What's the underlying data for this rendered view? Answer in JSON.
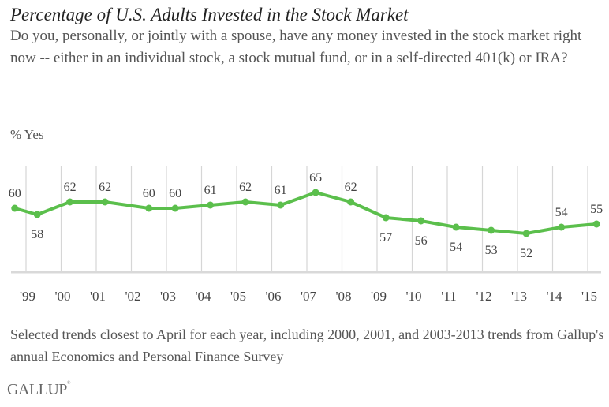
{
  "title": "Percentage of U.S. Adults Invested in the Stock Market",
  "question": "Do you, personally, or jointly with a spouse, have any money invested in the stock market right now -- either in an individual stock, a stock mutual fund, or in a self-directed 401(k) or IRA?",
  "footnote": "Selected trends closest to April for each year, including 2000, 2001, and 2003-2013 trends from Gallup's annual Economics and Personal Finance Survey",
  "logo": "GALLUP",
  "colors": {
    "series": "#5bbf4c",
    "grid": "#d6d6d6",
    "text": "#444444"
  },
  "chart_data": {
    "type": "line",
    "title": "Percentage of U.S. Adults Invested in the Stock Market",
    "ylabel": "% Yes",
    "xlabel": "",
    "grid": "vertical",
    "legend": "none",
    "x_tick_labels": [
      "'99",
      "'00",
      "'01",
      "'02",
      "'03",
      "'04",
      "'05",
      "'06",
      "'07",
      "'08",
      "'09",
      "'10",
      "'11",
      "'12",
      "'13",
      "'14",
      "'15"
    ],
    "x_range": [
      1998.6,
      2015.6
    ],
    "ylim": [
      44,
      70
    ],
    "series": [
      {
        "name": "% Yes",
        "points": [
          {
            "x": 1998.68,
            "y": 60,
            "label": "60",
            "label_pos": "above"
          },
          {
            "x": 1999.32,
            "y": 58,
            "label": "58",
            "label_pos": "below"
          },
          {
            "x": 2000.25,
            "y": 62,
            "label": "62",
            "label_pos": "above"
          },
          {
            "x": 2001.25,
            "y": 62,
            "label": "62",
            "label_pos": "above"
          },
          {
            "x": 2002.5,
            "y": 60,
            "label": "60",
            "label_pos": "above"
          },
          {
            "x": 2003.25,
            "y": 60,
            "label": "60",
            "label_pos": "above"
          },
          {
            "x": 2004.25,
            "y": 61,
            "label": "61",
            "label_pos": "above"
          },
          {
            "x": 2005.25,
            "y": 62,
            "label": "62",
            "label_pos": "above"
          },
          {
            "x": 2006.25,
            "y": 61,
            "label": "61",
            "label_pos": "above"
          },
          {
            "x": 2007.25,
            "y": 65,
            "label": "65",
            "label_pos": "above"
          },
          {
            "x": 2008.25,
            "y": 62,
            "label": "62",
            "label_pos": "above"
          },
          {
            "x": 2009.25,
            "y": 57,
            "label": "57",
            "label_pos": "below"
          },
          {
            "x": 2010.25,
            "y": 56,
            "label": "56",
            "label_pos": "below"
          },
          {
            "x": 2011.25,
            "y": 54,
            "label": "54",
            "label_pos": "below"
          },
          {
            "x": 2012.25,
            "y": 53,
            "label": "53",
            "label_pos": "below"
          },
          {
            "x": 2013.25,
            "y": 52,
            "label": "52",
            "label_pos": "below"
          },
          {
            "x": 2014.25,
            "y": 54,
            "label": "54",
            "label_pos": "above"
          },
          {
            "x": 2015.25,
            "y": 55,
            "label": "55",
            "label_pos": "above"
          }
        ]
      }
    ]
  }
}
